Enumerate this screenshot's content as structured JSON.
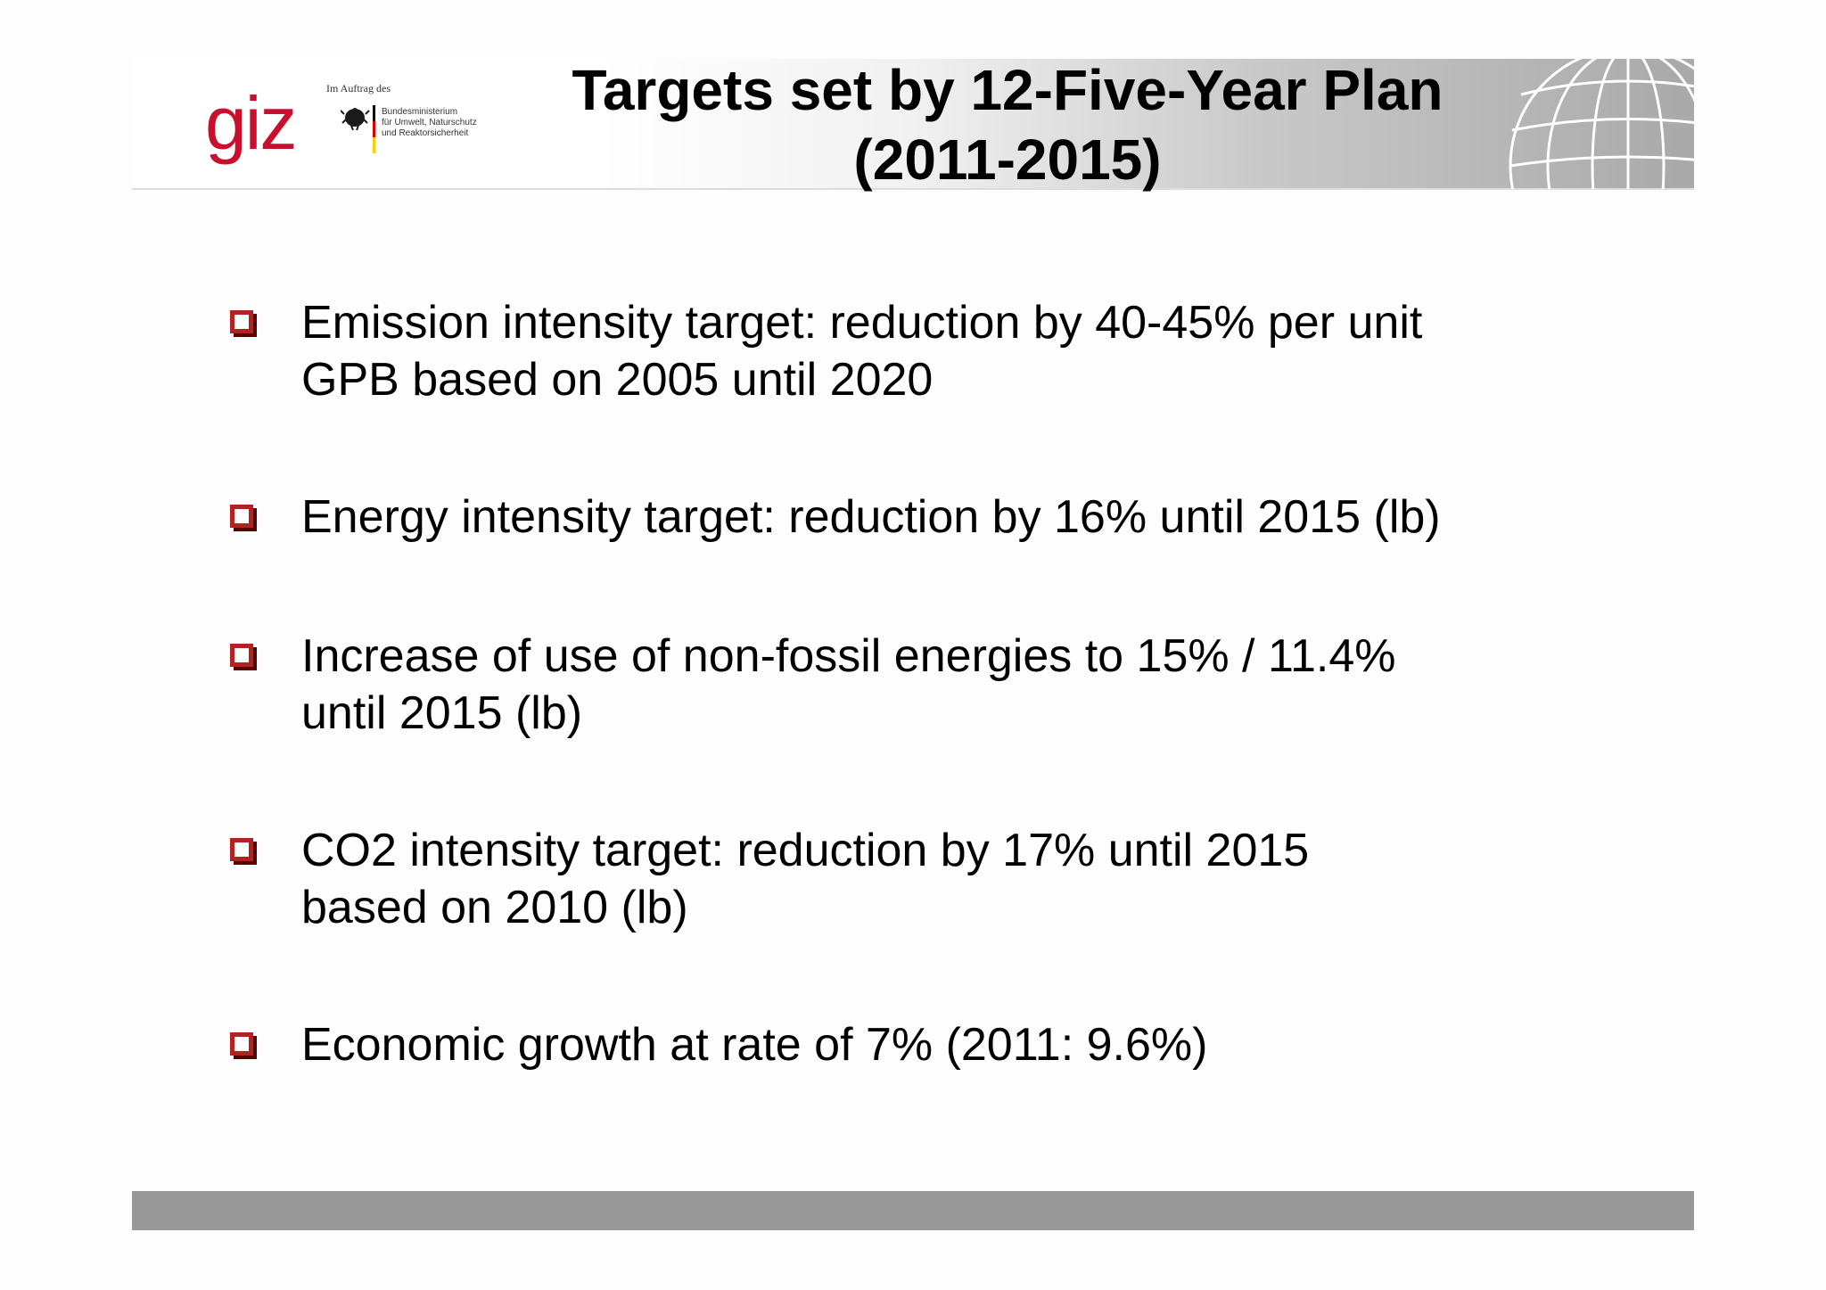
{
  "header": {
    "logo_text": "giz",
    "commission_text": "Im Auftrag des",
    "ministry_lines": [
      "Bundesministerium",
      "für Umwelt, Naturschutz",
      "und Reaktorsicherheit"
    ],
    "title_line1": "Targets set by 12-Five-Year Plan",
    "title_line2": "(2011-2015)"
  },
  "bullets": [
    {
      "line1": "Emission intensity target: reduction by 40-45% per unit",
      "line2": "GPB based on 2005 until 2020"
    },
    {
      "line1": "Energy intensity target: reduction by 16% until 2015 (lb)",
      "line2": ""
    },
    {
      "line1": "Increase of use of non-fossil energies to 15% / 11.4%",
      "line2": "until 2015 (lb)"
    },
    {
      "line1": "CO2 intensity target: reduction by 17% until 2015",
      "line2": "based on 2010 (lb)"
    },
    {
      "line1": "Economic growth at rate of 7% (2011: 9.6%)",
      "line2": ""
    }
  ],
  "colors": {
    "brand_red": "#c8102e",
    "bullet_red": "#b22222",
    "footer_gray": "#999899"
  },
  "icons": {
    "bullet": "checkbox-square-icon",
    "globe": "globe-wireframe-icon",
    "eagle": "federal-eagle-icon"
  }
}
